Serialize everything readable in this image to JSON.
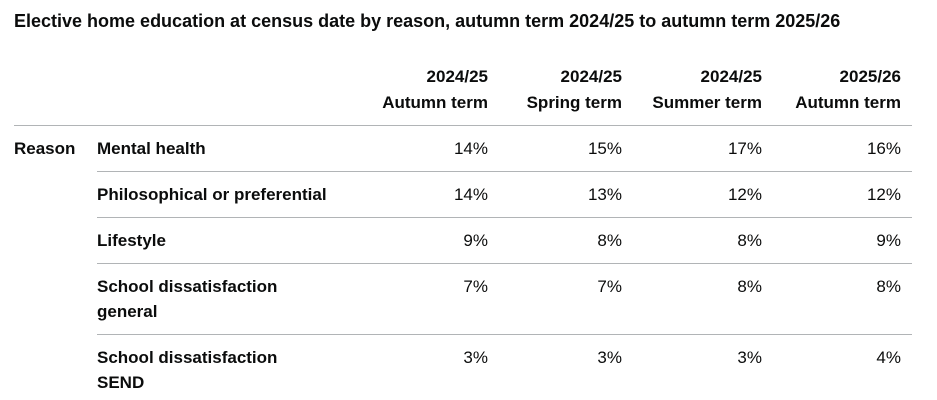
{
  "title": "Elective home education at census date by reason, autumn term 2024/25 to autumn term 2025/26",
  "table": {
    "headers": [
      [
        "2024/25",
        "Autumn term"
      ],
      [
        "2024/25",
        "Spring term"
      ],
      [
        "2024/25",
        "Summer term"
      ],
      [
        "2025/26",
        "Autumn term"
      ]
    ],
    "group_label": "Reason",
    "rows": [
      {
        "label": [
          "Mental health"
        ],
        "values": [
          "14%",
          "15%",
          "17%",
          "16%"
        ]
      },
      {
        "label": [
          "Philosophical or preferential"
        ],
        "values": [
          "14%",
          "13%",
          "12%",
          "12%"
        ]
      },
      {
        "label": [
          "Lifestyle"
        ],
        "values": [
          "9%",
          "8%",
          "8%",
          "9%"
        ]
      },
      {
        "label": [
          "School dissatisfaction",
          "general"
        ],
        "values": [
          "7%",
          "7%",
          "8%",
          "8%"
        ]
      },
      {
        "label": [
          "School dissatisfaction",
          "SEND"
        ],
        "values": [
          "3%",
          "3%",
          "3%",
          "4%"
        ]
      }
    ]
  }
}
